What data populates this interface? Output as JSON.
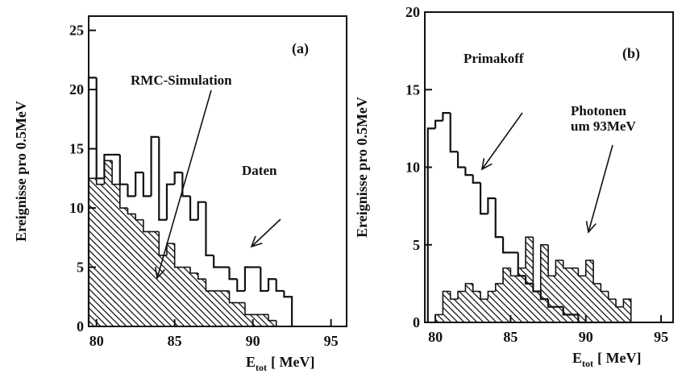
{
  "chart_data": [
    {
      "type": "histogram",
      "panel_label": "(a)",
      "ylabel": "Ereignisse pro 0.5MeV",
      "xlabel_parts": [
        "E",
        "tot",
        "[ MeV]"
      ],
      "bins": [
        79.5,
        80,
        80.5,
        81,
        81.5,
        82,
        82.5,
        83,
        83.5,
        84,
        84.5,
        85,
        85.5,
        86,
        86.5,
        87,
        87.5,
        88,
        88.5,
        89,
        89.5,
        90,
        90.5,
        91,
        91.5,
        92,
        92.5
      ],
      "series": [
        {
          "name": "Daten",
          "hatched": false,
          "color": "#111111",
          "values": [
            21,
            12.5,
            14.5,
            14.5,
            12,
            11,
            13,
            11,
            16,
            9,
            12,
            13,
            11,
            9,
            10.5,
            6,
            5,
            5,
            4,
            3,
            5,
            5,
            3,
            4,
            3,
            2.5
          ]
        },
        {
          "name": "RMC-Simulation",
          "hatched": true,
          "color": "#111111",
          "values": [
            12.5,
            12,
            14,
            12,
            10,
            9.5,
            9,
            8,
            8,
            6,
            7,
            5,
            5,
            4.5,
            4,
            3,
            3,
            3,
            2,
            2,
            1,
            1,
            1,
            0.5,
            0,
            0
          ]
        }
      ],
      "xlim": [
        79.5,
        96
      ],
      "xticks": [
        80,
        85,
        90,
        95
      ],
      "ylim": [
        0,
        26.2
      ],
      "yticks": [
        0,
        5,
        10,
        15,
        20,
        25
      ]
    },
    {
      "type": "histogram",
      "panel_label": "(b)",
      "ylabel": "Ereignisse pro 0.5MeV",
      "xlabel_parts": [
        "E",
        "tot",
        "[ MeV]"
      ],
      "bins": [
        79.5,
        80,
        80.5,
        81,
        81.5,
        82,
        82.5,
        83,
        83.5,
        84,
        84.5,
        85,
        85.5,
        86,
        86.5,
        87,
        87.5,
        88,
        88.5,
        89,
        89.5,
        90,
        90.5,
        91,
        91.5,
        92,
        92.5,
        93
      ],
      "series": [
        {
          "name": "Primakoff",
          "hatched": false,
          "color": "#111111",
          "values": [
            12.5,
            13,
            13.5,
            11,
            10,
            9.5,
            9,
            7,
            8,
            5.5,
            4.5,
            4.5,
            3,
            2.5,
            2,
            1.5,
            1,
            1,
            0.5,
            0.5,
            0,
            0,
            0,
            0,
            0,
            0,
            0
          ]
        },
        {
          "name": "Photonen um 93MeV",
          "hatched": true,
          "color": "#111111",
          "values": [
            0,
            0.5,
            2,
            1.5,
            2,
            2.5,
            2,
            1.5,
            2,
            2.5,
            3.5,
            3,
            3.5,
            5.5,
            2,
            5,
            3,
            4,
            3.5,
            3.5,
            3,
            4,
            2.5,
            2,
            1.5,
            1,
            1.5
          ]
        }
      ],
      "xlim": [
        79.3,
        95.8
      ],
      "xticks": [
        80,
        85,
        90,
        95
      ],
      "ylim": [
        0,
        20
      ],
      "yticks": [
        0,
        5,
        10,
        15,
        20
      ]
    }
  ]
}
